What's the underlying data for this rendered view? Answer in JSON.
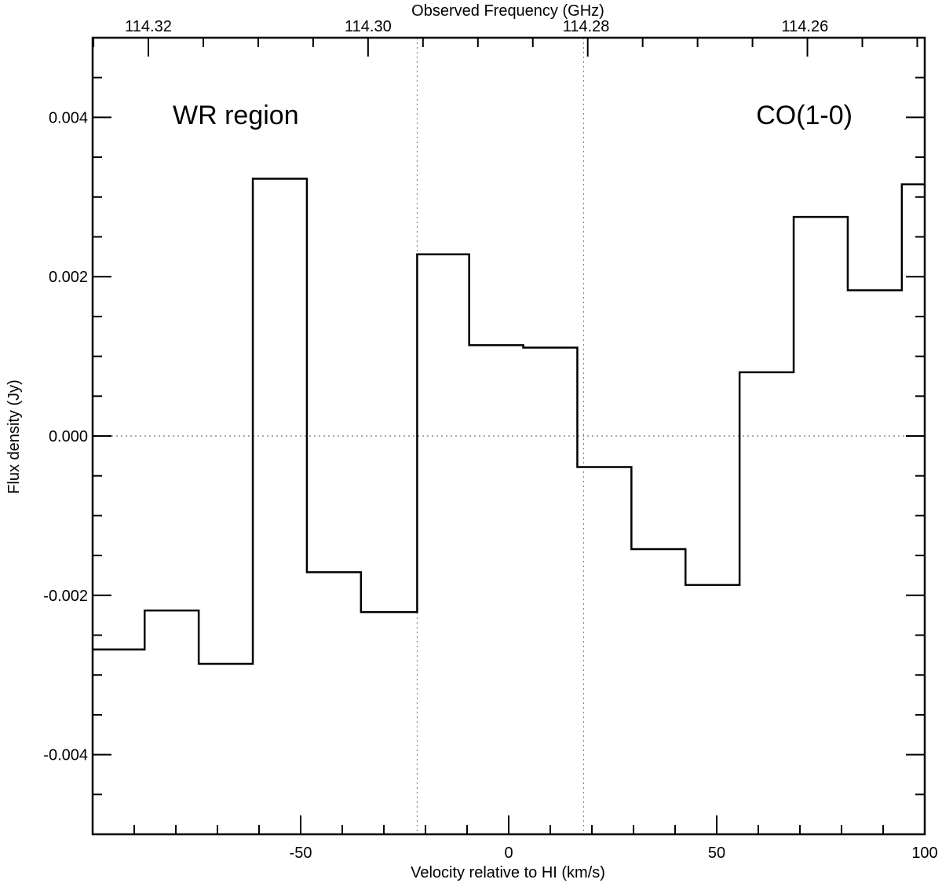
{
  "chart_data": {
    "type": "line",
    "style": "step",
    "color": "#000000",
    "annotations": [
      "WR region",
      "CO(1-0)"
    ],
    "xlabel": "Velocity relative to HI (km/s)",
    "ylabel": "Flux density (Jy)",
    "top_xlabel": "Observed Frequency (GHz)",
    "xlim": [
      -100,
      100
    ],
    "ylim": [
      -0.005,
      0.005
    ],
    "x_ticks": [
      "-50",
      "0",
      "50",
      "100"
    ],
    "y_ticks": [
      "-0.004",
      "-0.002",
      "0.000",
      "0.002",
      "0.004"
    ],
    "top_x_ticks": [
      "114.32",
      "114.30",
      "114.28",
      "114.26"
    ],
    "top_x_tick_velocities": [
      -86.6,
      -33.8,
      18.6,
      71.2
    ],
    "reference_lines": {
      "horizontal_y": [
        0.0
      ],
      "vertical_x": [
        -22.0,
        18.0
      ]
    },
    "bin_edges": [
      -100,
      -87.5,
      -74.5,
      -61.5,
      -48.5,
      -35.5,
      -22.0,
      -9.5,
      3.5,
      16.5,
      29.5,
      42.5,
      55.5,
      68.5,
      81.5,
      94.5,
      100
    ],
    "values": [
      -0.00268,
      -0.00219,
      -0.00286,
      0.00323,
      -0.00171,
      -0.00221,
      0.00228,
      0.00114,
      0.00111,
      -0.00039,
      -0.00142,
      -0.00187,
      0.0008,
      0.00275,
      0.00183,
      0.00316
    ],
    "grid": false,
    "legend": "none"
  }
}
